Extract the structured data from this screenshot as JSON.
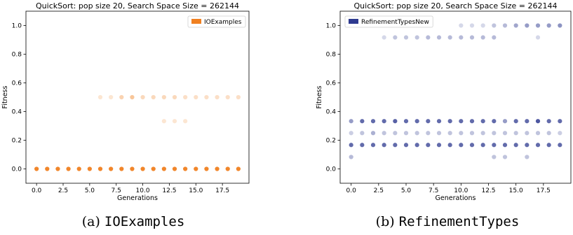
{
  "chart_data": [
    {
      "type": "scatter",
      "title": "QuickSort: pop size 20, Search Space Size = 262144",
      "xlabel": "Generations",
      "ylabel": "Fitness",
      "xlim": [
        -1,
        20
      ],
      "ylim": [
        -0.1,
        1.1
      ],
      "xticks": [
        "0.0",
        "2.5",
        "5.0",
        "7.5",
        "10.0",
        "12.5",
        "15.0",
        "17.5"
      ],
      "yticks": [
        "0.0",
        "0.2",
        "0.4",
        "0.6",
        "0.8",
        "1.0"
      ],
      "legend": "top-right",
      "color": "#f08020",
      "series": [
        {
          "name": "IOExamples",
          "points": [
            {
              "x": 0,
              "y": 0.0,
              "o": 0.95
            },
            {
              "x": 1,
              "y": 0.0,
              "o": 0.95
            },
            {
              "x": 2,
              "y": 0.0,
              "o": 0.95
            },
            {
              "x": 3,
              "y": 0.0,
              "o": 0.95
            },
            {
              "x": 4,
              "y": 0.0,
              "o": 0.95
            },
            {
              "x": 5,
              "y": 0.0,
              "o": 0.95
            },
            {
              "x": 6,
              "y": 0.0,
              "o": 0.95
            },
            {
              "x": 7,
              "y": 0.0,
              "o": 0.95
            },
            {
              "x": 8,
              "y": 0.0,
              "o": 0.95
            },
            {
              "x": 9,
              "y": 0.0,
              "o": 0.95
            },
            {
              "x": 10,
              "y": 0.0,
              "o": 0.95
            },
            {
              "x": 11,
              "y": 0.0,
              "o": 0.95
            },
            {
              "x": 12,
              "y": 0.0,
              "o": 0.95
            },
            {
              "x": 13,
              "y": 0.0,
              "o": 0.95
            },
            {
              "x": 14,
              "y": 0.0,
              "o": 0.95
            },
            {
              "x": 15,
              "y": 0.0,
              "o": 0.95
            },
            {
              "x": 16,
              "y": 0.0,
              "o": 0.95
            },
            {
              "x": 17,
              "y": 0.0,
              "o": 0.95
            },
            {
              "x": 18,
              "y": 0.0,
              "o": 0.95
            },
            {
              "x": 19,
              "y": 0.0,
              "o": 0.95
            },
            {
              "x": 6,
              "y": 0.5,
              "o": 0.2
            },
            {
              "x": 7,
              "y": 0.5,
              "o": 0.2
            },
            {
              "x": 8,
              "y": 0.5,
              "o": 0.35
            },
            {
              "x": 9,
              "y": 0.5,
              "o": 0.45
            },
            {
              "x": 10,
              "y": 0.5,
              "o": 0.3
            },
            {
              "x": 11,
              "y": 0.5,
              "o": 0.3
            },
            {
              "x": 12,
              "y": 0.5,
              "o": 0.3
            },
            {
              "x": 13,
              "y": 0.5,
              "o": 0.3
            },
            {
              "x": 14,
              "y": 0.5,
              "o": 0.25
            },
            {
              "x": 15,
              "y": 0.5,
              "o": 0.25
            },
            {
              "x": 16,
              "y": 0.5,
              "o": 0.25
            },
            {
              "x": 17,
              "y": 0.5,
              "o": 0.25
            },
            {
              "x": 18,
              "y": 0.5,
              "o": 0.25
            },
            {
              "x": 19,
              "y": 0.5,
              "o": 0.25
            },
            {
              "x": 12,
              "y": 0.333,
              "o": 0.2
            },
            {
              "x": 13,
              "y": 0.333,
              "o": 0.2
            },
            {
              "x": 14,
              "y": 0.333,
              "o": 0.2
            }
          ]
        }
      ]
    },
    {
      "type": "scatter",
      "title": "QuickSort: pop size 20, Search Space Size = 262144",
      "xlabel": "Generations",
      "ylabel": "Fitness",
      "xlim": [
        -1,
        20
      ],
      "ylim": [
        -0.1,
        1.1
      ],
      "xticks": [
        "0.0",
        "2.5",
        "5.0",
        "7.5",
        "10.0",
        "12.5",
        "15.0",
        "17.5"
      ],
      "yticks": [
        "0.0",
        "0.2",
        "0.4",
        "0.6",
        "0.8",
        "1.0"
      ],
      "legend": "top-left",
      "color": "#2e3a8f",
      "series": [
        {
          "name": "RefinementTypesNew",
          "points": [
            {
              "x": 0,
              "y": 0.333,
              "o": 0.5
            },
            {
              "x": 1,
              "y": 0.333,
              "o": 0.75
            },
            {
              "x": 2,
              "y": 0.333,
              "o": 0.75
            },
            {
              "x": 3,
              "y": 0.333,
              "o": 0.75
            },
            {
              "x": 4,
              "y": 0.333,
              "o": 0.8
            },
            {
              "x": 5,
              "y": 0.333,
              "o": 0.75
            },
            {
              "x": 6,
              "y": 0.333,
              "o": 0.75
            },
            {
              "x": 7,
              "y": 0.333,
              "o": 0.75
            },
            {
              "x": 8,
              "y": 0.333,
              "o": 0.75
            },
            {
              "x": 9,
              "y": 0.333,
              "o": 0.75
            },
            {
              "x": 10,
              "y": 0.333,
              "o": 0.75
            },
            {
              "x": 11,
              "y": 0.333,
              "o": 0.75
            },
            {
              "x": 12,
              "y": 0.333,
              "o": 0.75
            },
            {
              "x": 13,
              "y": 0.333,
              "o": 0.75
            },
            {
              "x": 14,
              "y": 0.333,
              "o": 0.5
            },
            {
              "x": 15,
              "y": 0.333,
              "o": 0.75
            },
            {
              "x": 16,
              "y": 0.333,
              "o": 0.75
            },
            {
              "x": 17,
              "y": 0.333,
              "o": 0.85
            },
            {
              "x": 18,
              "y": 0.333,
              "o": 0.75
            },
            {
              "x": 19,
              "y": 0.333,
              "o": 0.75
            },
            {
              "x": 0,
              "y": 0.25,
              "o": 0.25
            },
            {
              "x": 1,
              "y": 0.25,
              "o": 0.3
            },
            {
              "x": 2,
              "y": 0.25,
              "o": 0.4
            },
            {
              "x": 3,
              "y": 0.25,
              "o": 0.3
            },
            {
              "x": 4,
              "y": 0.25,
              "o": 0.3
            },
            {
              "x": 5,
              "y": 0.25,
              "o": 0.3
            },
            {
              "x": 6,
              "y": 0.25,
              "o": 0.3
            },
            {
              "x": 7,
              "y": 0.25,
              "o": 0.3
            },
            {
              "x": 8,
              "y": 0.25,
              "o": 0.3
            },
            {
              "x": 9,
              "y": 0.25,
              "o": 0.3
            },
            {
              "x": 10,
              "y": 0.25,
              "o": 0.3
            },
            {
              "x": 11,
              "y": 0.25,
              "o": 0.3
            },
            {
              "x": 12,
              "y": 0.25,
              "o": 0.3
            },
            {
              "x": 13,
              "y": 0.25,
              "o": 0.3
            },
            {
              "x": 14,
              "y": 0.25,
              "o": 0.3
            },
            {
              "x": 15,
              "y": 0.25,
              "o": 0.3
            },
            {
              "x": 16,
              "y": 0.25,
              "o": 0.3
            },
            {
              "x": 17,
              "y": 0.25,
              "o": 0.3
            },
            {
              "x": 18,
              "y": 0.25,
              "o": 0.3
            },
            {
              "x": 19,
              "y": 0.25,
              "o": 0.25
            },
            {
              "x": 0,
              "y": 0.167,
              "o": 0.75
            },
            {
              "x": 1,
              "y": 0.167,
              "o": 0.75
            },
            {
              "x": 2,
              "y": 0.167,
              "o": 0.75
            },
            {
              "x": 3,
              "y": 0.167,
              "o": 0.75
            },
            {
              "x": 4,
              "y": 0.167,
              "o": 0.75
            },
            {
              "x": 5,
              "y": 0.167,
              "o": 0.75
            },
            {
              "x": 6,
              "y": 0.167,
              "o": 0.75
            },
            {
              "x": 7,
              "y": 0.167,
              "o": 0.75
            },
            {
              "x": 8,
              "y": 0.167,
              "o": 0.75
            },
            {
              "x": 9,
              "y": 0.167,
              "o": 0.75
            },
            {
              "x": 10,
              "y": 0.167,
              "o": 0.75
            },
            {
              "x": 11,
              "y": 0.167,
              "o": 0.75
            },
            {
              "x": 12,
              "y": 0.167,
              "o": 0.75
            },
            {
              "x": 13,
              "y": 0.167,
              "o": 0.75
            },
            {
              "x": 14,
              "y": 0.167,
              "o": 0.75
            },
            {
              "x": 15,
              "y": 0.167,
              "o": 0.75
            },
            {
              "x": 16,
              "y": 0.167,
              "o": 0.75
            },
            {
              "x": 17,
              "y": 0.167,
              "o": 0.75
            },
            {
              "x": 18,
              "y": 0.167,
              "o": 0.75
            },
            {
              "x": 19,
              "y": 0.167,
              "o": 0.75
            },
            {
              "x": 0,
              "y": 0.083,
              "o": 0.35
            },
            {
              "x": 13,
              "y": 0.083,
              "o": 0.3
            },
            {
              "x": 14,
              "y": 0.083,
              "o": 0.3
            },
            {
              "x": 16,
              "y": 0.083,
              "o": 0.3
            },
            {
              "x": 3,
              "y": 0.917,
              "o": 0.2
            },
            {
              "x": 4,
              "y": 0.917,
              "o": 0.3
            },
            {
              "x": 5,
              "y": 0.917,
              "o": 0.3
            },
            {
              "x": 6,
              "y": 0.917,
              "o": 0.3
            },
            {
              "x": 7,
              "y": 0.917,
              "o": 0.35
            },
            {
              "x": 8,
              "y": 0.917,
              "o": 0.35
            },
            {
              "x": 9,
              "y": 0.917,
              "o": 0.35
            },
            {
              "x": 10,
              "y": 0.917,
              "o": 0.35
            },
            {
              "x": 11,
              "y": 0.917,
              "o": 0.35
            },
            {
              "x": 12,
              "y": 0.917,
              "o": 0.35
            },
            {
              "x": 13,
              "y": 0.917,
              "o": 0.35
            },
            {
              "x": 17,
              "y": 0.917,
              "o": 0.2
            },
            {
              "x": 10,
              "y": 1.0,
              "o": 0.2
            },
            {
              "x": 11,
              "y": 1.0,
              "o": 0.2
            },
            {
              "x": 12,
              "y": 1.0,
              "o": 0.2
            },
            {
              "x": 13,
              "y": 1.0,
              "o": 0.3
            },
            {
              "x": 14,
              "y": 1.0,
              "o": 0.35
            },
            {
              "x": 15,
              "y": 1.0,
              "o": 0.45
            },
            {
              "x": 16,
              "y": 1.0,
              "o": 0.5
            },
            {
              "x": 17,
              "y": 1.0,
              "o": 0.5
            },
            {
              "x": 18,
              "y": 1.0,
              "o": 0.5
            },
            {
              "x": 19,
              "y": 1.0,
              "o": 0.55
            }
          ]
        }
      ]
    }
  ],
  "captions": [
    {
      "label": "(a)",
      "name": "IOExamples"
    },
    {
      "label": "(b)",
      "name": "RefinementTypes"
    }
  ]
}
